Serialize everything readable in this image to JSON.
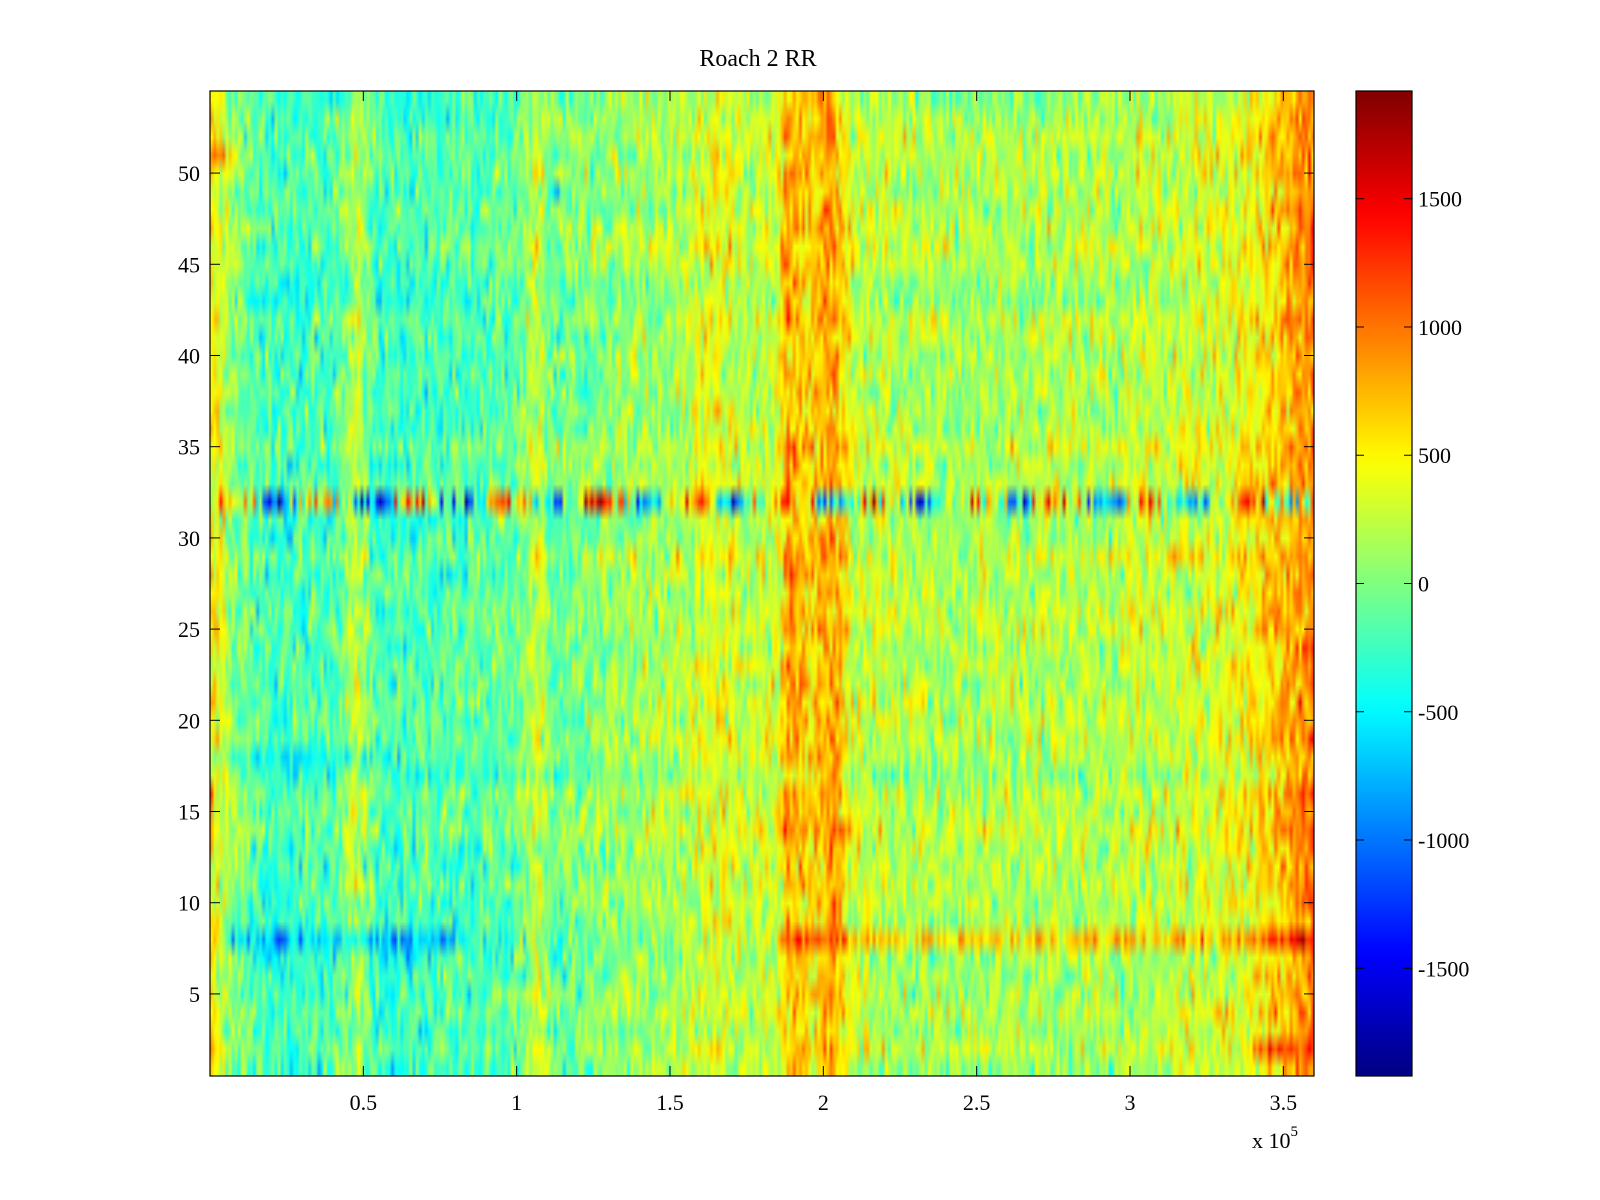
{
  "chart_data": {
    "type": "heatmap",
    "title": "Roach 2 RR",
    "xlabel": "",
    "ylabel": "",
    "xlim": [
      0,
      360000
    ],
    "ylim": [
      0.5,
      54.5
    ],
    "x_multiplier_label": "x 10",
    "x_multiplier_exponent": "5",
    "x_ticks": [
      {
        "value": 50000,
        "label": "0.5"
      },
      {
        "value": 100000,
        "label": "1"
      },
      {
        "value": 150000,
        "label": "1.5"
      },
      {
        "value": 200000,
        "label": "2"
      },
      {
        "value": 250000,
        "label": "2.5"
      },
      {
        "value": 300000,
        "label": "3"
      },
      {
        "value": 350000,
        "label": "3.5"
      }
    ],
    "y_ticks": [
      {
        "value": 5,
        "label": "5"
      },
      {
        "value": 10,
        "label": "10"
      },
      {
        "value": 15,
        "label": "15"
      },
      {
        "value": 20,
        "label": "20"
      },
      {
        "value": 25,
        "label": "25"
      },
      {
        "value": 30,
        "label": "30"
      },
      {
        "value": 35,
        "label": "35"
      },
      {
        "value": 40,
        "label": "40"
      },
      {
        "value": 45,
        "label": "45"
      },
      {
        "value": 50,
        "label": "50"
      }
    ],
    "rows": 54,
    "columns": 360,
    "colormap": "jet",
    "clim": [
      -1920,
      1920
    ],
    "colorbar_ticks": [
      {
        "value": 1500,
        "label": "1500"
      },
      {
        "value": 1000,
        "label": "1000"
      },
      {
        "value": 500,
        "label": "500"
      },
      {
        "value": 0,
        "label": "0"
      },
      {
        "value": -500,
        "label": "-500"
      },
      {
        "value": -1000,
        "label": "-1000"
      },
      {
        "value": -1500,
        "label": "-1500"
      }
    ],
    "column_profile": [
      {
        "x": 0,
        "mean": 600
      },
      {
        "x": 8000,
        "mean": 0
      },
      {
        "x": 20000,
        "mean": -250
      },
      {
        "x": 40000,
        "mean": -200
      },
      {
        "x": 48000,
        "mean": 250
      },
      {
        "x": 55000,
        "mean": -250
      },
      {
        "x": 100000,
        "mean": -100
      },
      {
        "x": 107000,
        "mean": 300
      },
      {
        "x": 112000,
        "mean": -100
      },
      {
        "x": 125000,
        "mean": 50
      },
      {
        "x": 150000,
        "mean": 150
      },
      {
        "x": 165000,
        "mean": 400
      },
      {
        "x": 175000,
        "mean": 250
      },
      {
        "x": 185000,
        "mean": 300
      },
      {
        "x": 188000,
        "mean": 800
      },
      {
        "x": 197000,
        "mean": 600
      },
      {
        "x": 203000,
        "mean": 900
      },
      {
        "x": 210000,
        "mean": 250
      },
      {
        "x": 240000,
        "mean": 150
      },
      {
        "x": 300000,
        "mean": 200
      },
      {
        "x": 335000,
        "mean": 400
      },
      {
        "x": 350000,
        "mean": 700
      },
      {
        "x": 360000,
        "mean": 1000
      }
    ],
    "row_features": [
      {
        "row": 32,
        "description": "high-variance row with alternating strong red and blue segments",
        "amplitude": 1500
      },
      {
        "row": 18,
        "offset": -250,
        "range": [
          0,
          60000
        ]
      },
      {
        "row": 8,
        "offset": -450,
        "range": [
          5000,
          80000
        ]
      },
      {
        "row": 8,
        "offset": 500,
        "range": [
          185000,
          360000
        ]
      },
      {
        "row": 51,
        "offset": 500,
        "range": [
          0,
          10000
        ]
      },
      {
        "row": 2,
        "offset": 400,
        "range": [
          340000,
          360000
        ]
      }
    ]
  }
}
